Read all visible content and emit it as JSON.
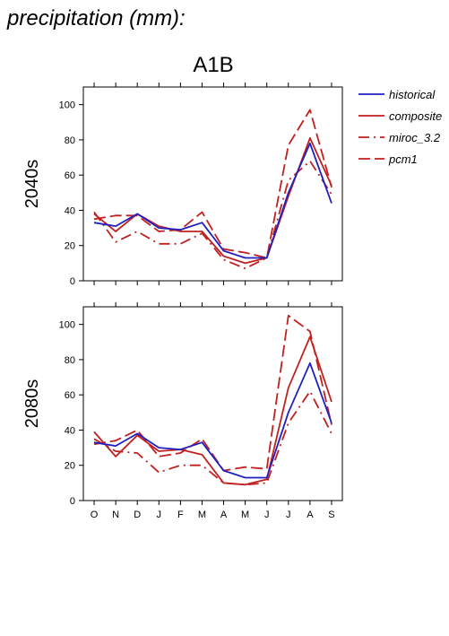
{
  "page_title": "precipitation (mm):",
  "scenario_title": "A1B",
  "colors": {
    "historical": "#2020c0",
    "models": "#c02020"
  },
  "legend": [
    {
      "label": "historical",
      "style": "solid",
      "color": "#2020c0"
    },
    {
      "label": "composite",
      "style": "solid",
      "color": "#c02020"
    },
    {
      "label": "miroc_3.2",
      "style": "dashdot",
      "color": "#c02020"
    },
    {
      "label": "pcm1",
      "style": "dash",
      "color": "#c02020"
    }
  ],
  "chart_data": [
    {
      "type": "line",
      "row_label": "2040s",
      "categories": [
        "O",
        "N",
        "D",
        "J",
        "F",
        "M",
        "A",
        "M",
        "J",
        "J",
        "A",
        "S"
      ],
      "ylim": [
        0,
        110
      ],
      "yticks": [
        0,
        20,
        40,
        60,
        80,
        100
      ],
      "series": [
        {
          "name": "historical",
          "values": [
            33,
            31,
            38,
            30,
            29,
            33,
            17,
            13,
            13,
            50,
            78,
            44
          ]
        },
        {
          "name": "composite",
          "values": [
            38,
            28,
            38,
            31,
            28,
            28,
            14,
            10,
            13,
            48,
            81,
            54
          ]
        },
        {
          "name": "miroc_3.2",
          "values": [
            39,
            22,
            28,
            21,
            21,
            27,
            12,
            7,
            13,
            57,
            68,
            49
          ]
        },
        {
          "name": "pcm1",
          "values": [
            35,
            37,
            37,
            28,
            29,
            39,
            18,
            16,
            13,
            77,
            97,
            53
          ]
        }
      ]
    },
    {
      "type": "line",
      "row_label": "2080s",
      "categories": [
        "O",
        "N",
        "D",
        "J",
        "F",
        "M",
        "A",
        "M",
        "J",
        "J",
        "A",
        "S"
      ],
      "ylim": [
        0,
        110
      ],
      "yticks": [
        0,
        20,
        40,
        60,
        80,
        100
      ],
      "series": [
        {
          "name": "historical",
          "values": [
            33,
            31,
            38,
            30,
            29,
            33,
            17,
            13,
            13,
            50,
            78,
            44
          ]
        },
        {
          "name": "composite",
          "values": [
            39,
            25,
            37,
            28,
            29,
            26,
            10,
            9,
            12,
            64,
            93,
            56
          ]
        },
        {
          "name": "miroc_3.2",
          "values": [
            35,
            28,
            27,
            16,
            20,
            20,
            10,
            9,
            10,
            44,
            62,
            38
          ]
        },
        {
          "name": "pcm1",
          "values": [
            32,
            34,
            40,
            25,
            27,
            35,
            17,
            19,
            18,
            105,
            96,
            43
          ]
        }
      ]
    }
  ]
}
